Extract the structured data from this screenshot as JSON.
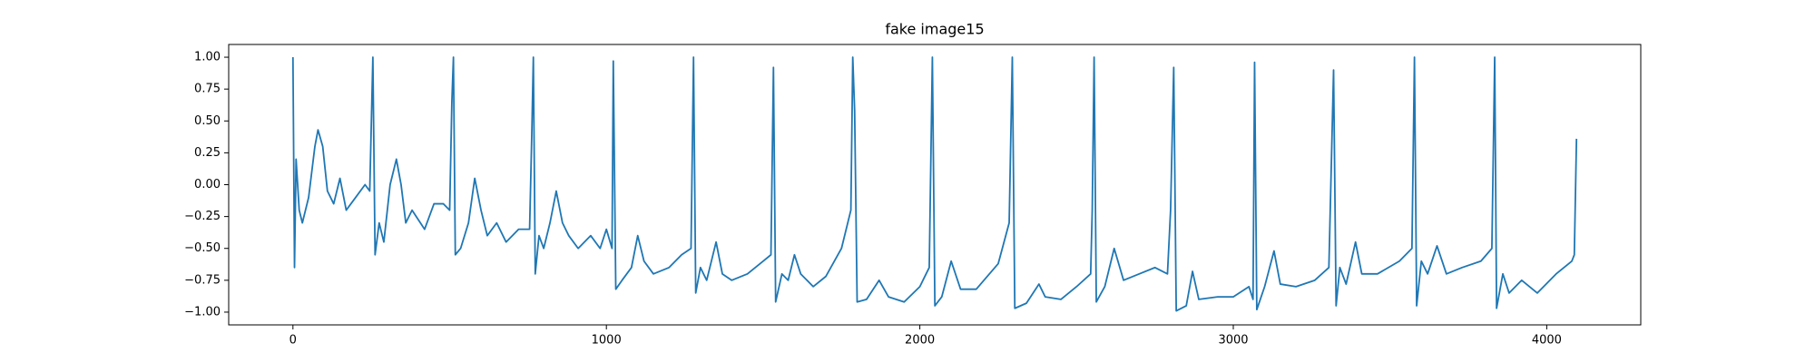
{
  "chart_data": {
    "type": "line",
    "title": "fake image15",
    "color": "#1f77b4",
    "x": [
      0,
      5,
      10,
      20,
      30,
      50,
      70,
      80,
      95,
      110,
      130,
      150,
      170,
      200,
      230,
      245,
      255,
      262,
      275,
      290,
      310,
      330,
      345,
      360,
      380,
      420,
      450,
      480,
      500,
      507,
      512,
      518,
      535,
      560,
      580,
      600,
      620,
      650,
      680,
      720,
      755,
      762,
      767,
      773,
      785,
      800,
      820,
      840,
      860,
      880,
      910,
      950,
      980,
      1000,
      1018,
      1022,
      1030,
      1050,
      1080,
      1100,
      1120,
      1150,
      1200,
      1240,
      1270,
      1278,
      1285,
      1300,
      1320,
      1350,
      1370,
      1400,
      1450,
      1500,
      1525,
      1533,
      1540,
      1560,
      1580,
      1600,
      1620,
      1660,
      1700,
      1750,
      1780,
      1786,
      1792,
      1800,
      1830,
      1870,
      1900,
      1950,
      2000,
      2030,
      2040,
      2048,
      2070,
      2100,
      2130,
      2180,
      2250,
      2285,
      2295,
      2303,
      2340,
      2380,
      2400,
      2450,
      2500,
      2545,
      2550,
      2556,
      2563,
      2590,
      2620,
      2650,
      2700,
      2750,
      2790,
      2800,
      2810,
      2818,
      2850,
      2870,
      2890,
      2950,
      3000,
      3050,
      3063,
      3068,
      3075,
      3100,
      3130,
      3150,
      3200,
      3260,
      3305,
      3320,
      3328,
      3340,
      3360,
      3390,
      3410,
      3460,
      3530,
      3570,
      3578,
      3585,
      3600,
      3620,
      3650,
      3680,
      3730,
      3790,
      3825,
      3834,
      3840,
      3860,
      3880,
      3920,
      3970,
      4030,
      4080,
      4088,
      4095
    ],
    "values": [
      1.0,
      -0.65,
      0.2,
      -0.2,
      -0.3,
      -0.1,
      0.3,
      0.43,
      0.3,
      -0.05,
      -0.15,
      0.05,
      -0.2,
      -0.1,
      0.0,
      -0.05,
      1.0,
      -0.55,
      -0.3,
      -0.45,
      0.0,
      0.2,
      0.0,
      -0.3,
      -0.2,
      -0.35,
      -0.15,
      -0.15,
      -0.2,
      0.65,
      1.0,
      -0.55,
      -0.5,
      -0.3,
      0.05,
      -0.2,
      -0.4,
      -0.3,
      -0.45,
      -0.35,
      -0.35,
      0.4,
      1.0,
      -0.7,
      -0.4,
      -0.5,
      -0.3,
      -0.05,
      -0.3,
      -0.4,
      -0.5,
      -0.4,
      -0.5,
      -0.35,
      -0.5,
      0.97,
      -0.82,
      -0.75,
      -0.65,
      -0.4,
      -0.6,
      -0.7,
      -0.65,
      -0.55,
      -0.5,
      1.0,
      -0.85,
      -0.65,
      -0.75,
      -0.45,
      -0.7,
      -0.75,
      -0.7,
      -0.6,
      -0.55,
      0.92,
      -0.92,
      -0.7,
      -0.75,
      -0.55,
      -0.7,
      -0.8,
      -0.72,
      -0.5,
      -0.2,
      1.0,
      0.58,
      -0.92,
      -0.9,
      -0.75,
      -0.88,
      -0.92,
      -0.8,
      -0.65,
      1.0,
      -0.95,
      -0.88,
      -0.6,
      -0.82,
      -0.82,
      -0.62,
      -0.3,
      1.0,
      -0.97,
      -0.93,
      -0.78,
      -0.88,
      -0.9,
      -0.8,
      -0.7,
      -0.2,
      1.0,
      -0.92,
      -0.8,
      -0.5,
      -0.75,
      -0.7,
      -0.65,
      -0.7,
      -0.2,
      0.92,
      -0.99,
      -0.95,
      -0.68,
      -0.9,
      -0.88,
      -0.88,
      -0.8,
      -0.9,
      0.96,
      -0.98,
      -0.8,
      -0.52,
      -0.78,
      -0.8,
      -0.75,
      -0.65,
      0.9,
      -0.95,
      -0.65,
      -0.78,
      -0.45,
      -0.7,
      -0.7,
      -0.6,
      -0.5,
      1.0,
      -0.95,
      -0.6,
      -0.7,
      -0.48,
      -0.7,
      -0.65,
      -0.6,
      -0.5,
      1.0,
      -0.97,
      -0.7,
      -0.85,
      -0.75,
      -0.85,
      -0.7,
      -0.6,
      -0.55,
      0.36
    ],
    "xlim": [
      -205,
      4300
    ],
    "xticks": [
      0,
      1000,
      2000,
      3000,
      4000
    ],
    "ylim": [
      -1.1,
      1.1
    ],
    "yticks": [
      {
        "value": -1,
        "label": "−1.00"
      },
      {
        "value": -0.75,
        "label": "−0.75"
      },
      {
        "value": -0.5,
        "label": "−0.50"
      },
      {
        "value": -0.25,
        "label": "−0.25"
      },
      {
        "value": 0,
        "label": "0.00"
      },
      {
        "value": 0.25,
        "label": "0.25"
      },
      {
        "value": 0.5,
        "label": "0.50"
      },
      {
        "value": 0.75,
        "label": "0.75"
      },
      {
        "value": 1,
        "label": "1.00"
      }
    ]
  }
}
